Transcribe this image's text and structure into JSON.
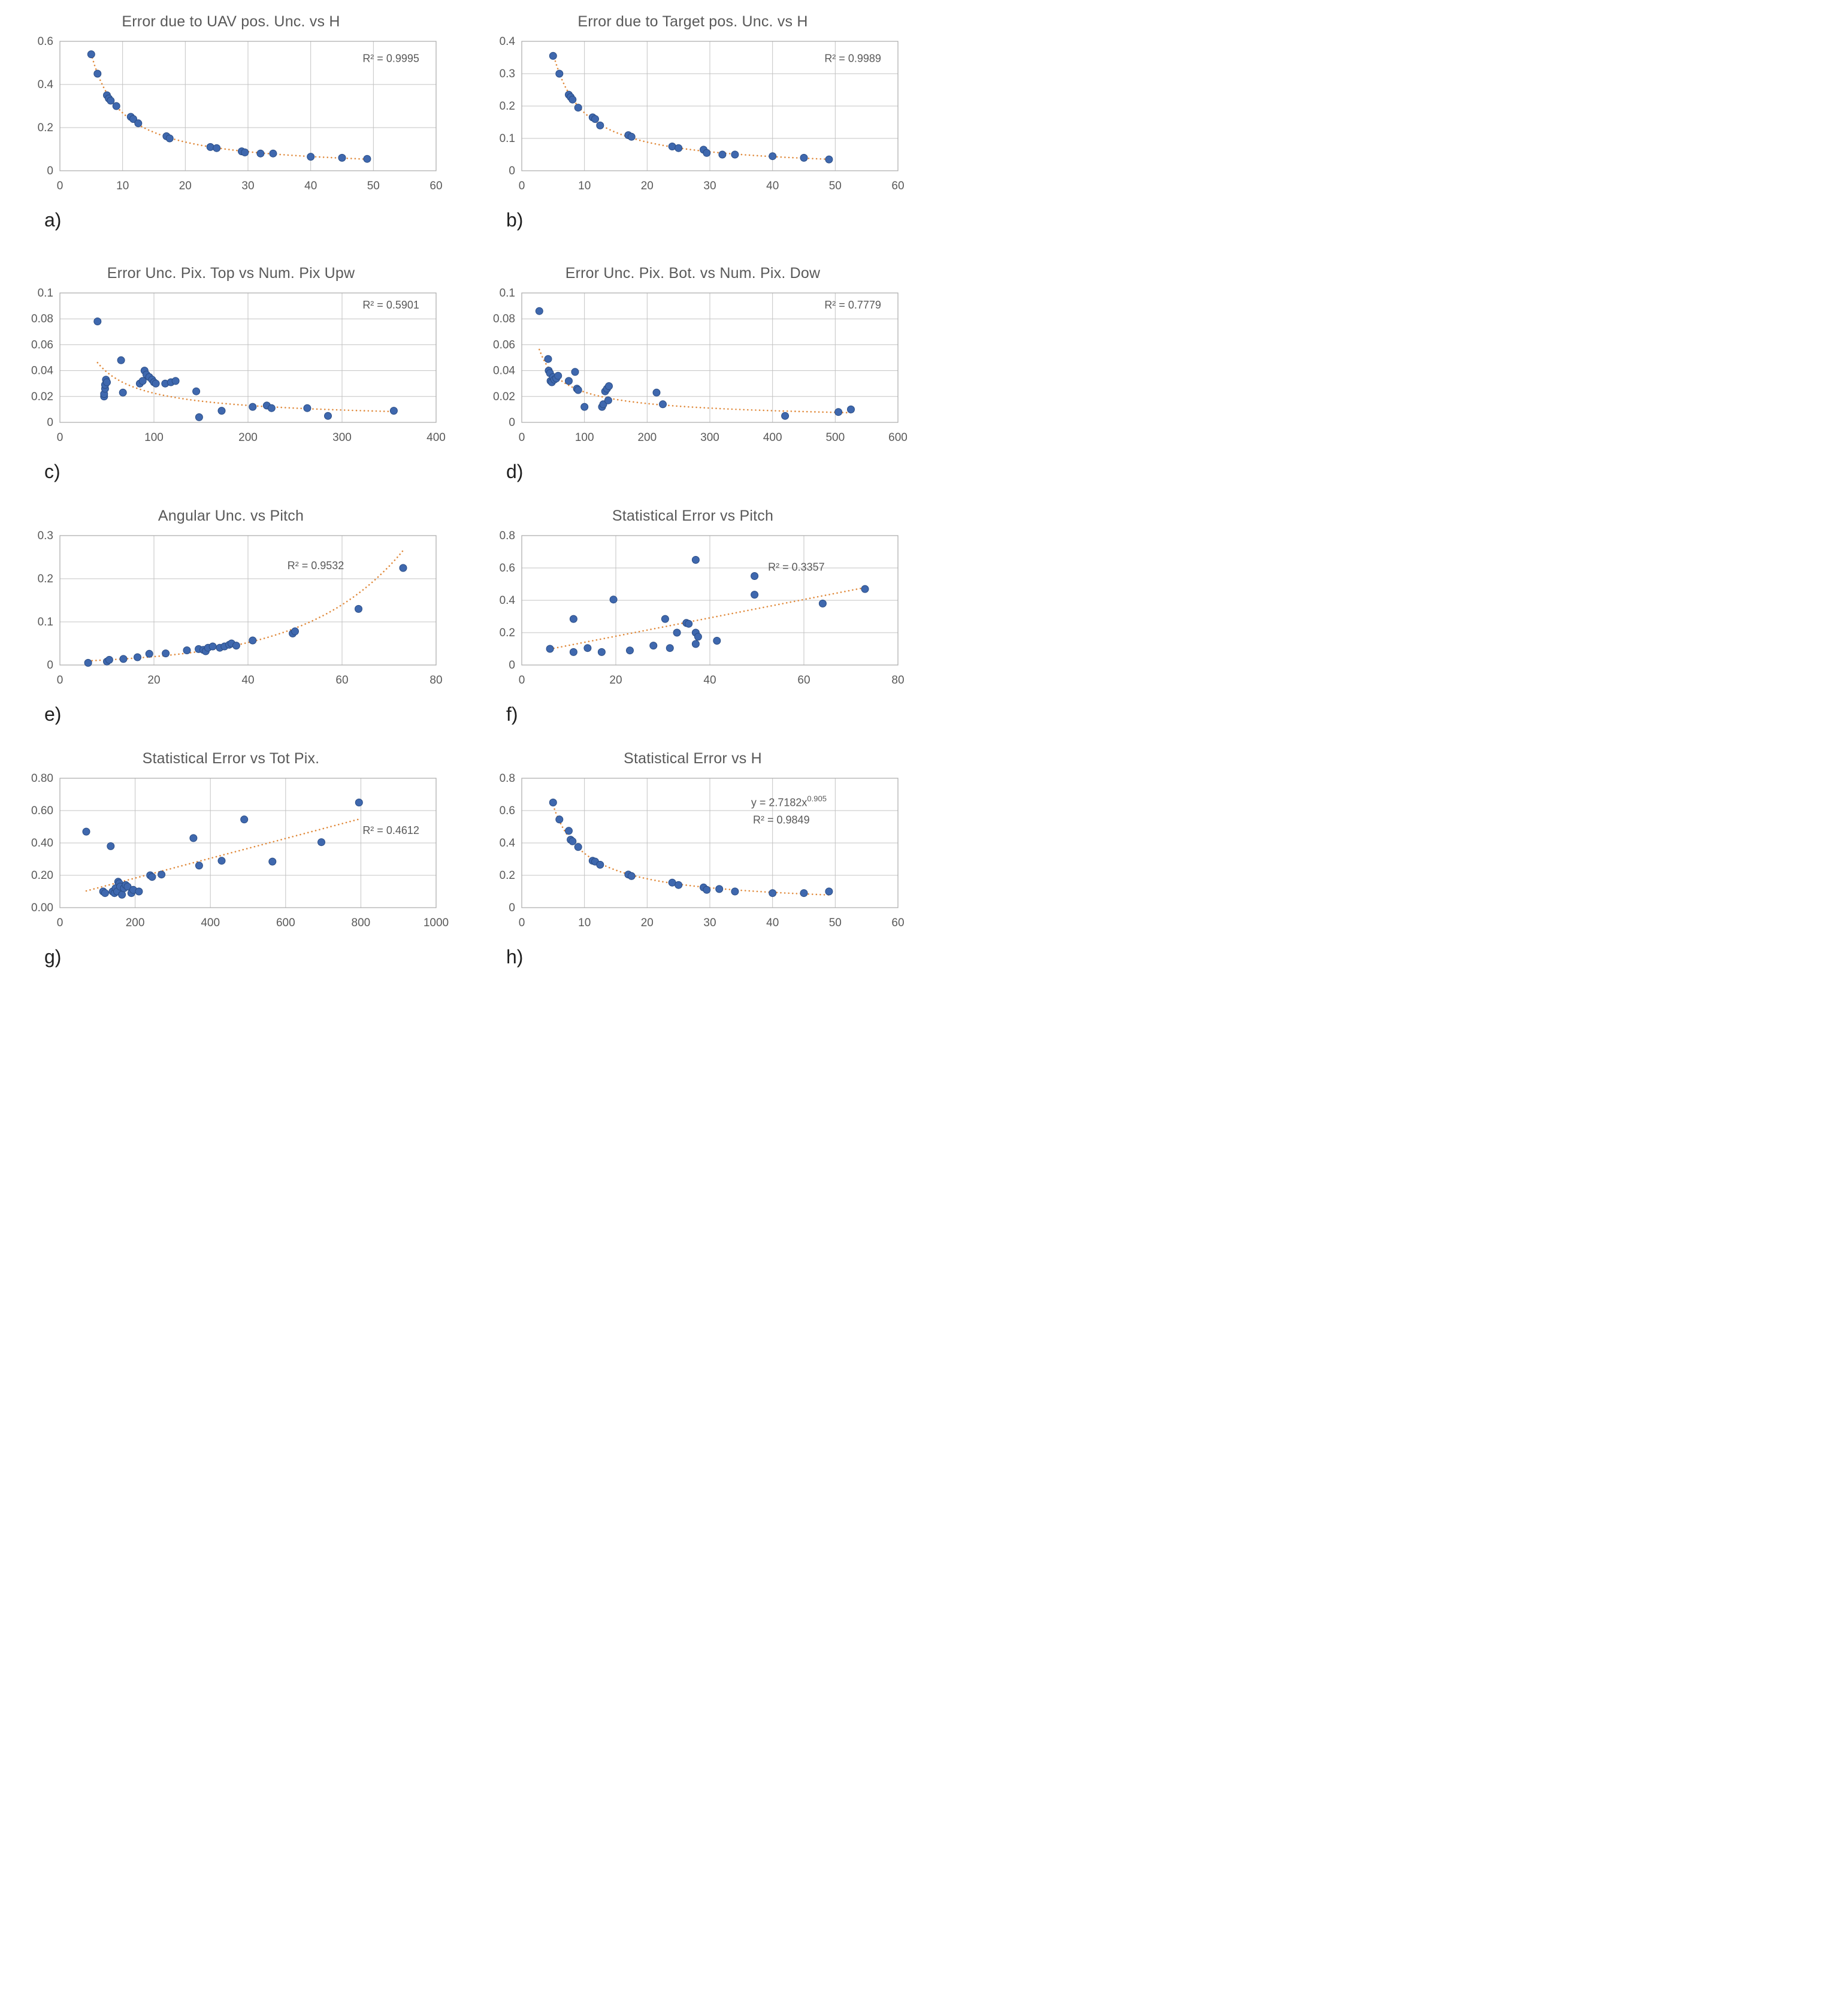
{
  "page": {
    "background": "#ffffff"
  },
  "colors": {
    "point": "#3f68ae",
    "point_edge": "#2a4d86",
    "trend": "#e08a3c",
    "title": "#595959",
    "tick": "#595959",
    "grid": "#c3c3c3",
    "border": "#a9a9a9",
    "annotation": "#595959",
    "caption": "#1f1f1f"
  },
  "chart_data": [
    {
      "type": "scatter",
      "panel_label": "a)",
      "title": "Error due to UAV pos. Unc. vs H",
      "xlabel": "",
      "ylabel": "",
      "xlim": [
        0,
        60
      ],
      "ylim": [
        0,
        0.6
      ],
      "xticks": [
        "0",
        "10",
        "20",
        "30",
        "40",
        "50",
        "60"
      ],
      "yticks": [
        "0",
        "0.2",
        "0.4",
        "0.6"
      ],
      "grid": true,
      "legend": false,
      "trend": {
        "kind": "power",
        "style": "dotted"
      },
      "annotations": [
        {
          "text": "R² = 0.9995",
          "fx": 0.88,
          "fy": 0.16
        }
      ],
      "points": [
        [
          5,
          0.54
        ],
        [
          6,
          0.45
        ],
        [
          7.5,
          0.35
        ],
        [
          7.8,
          0.335
        ],
        [
          8.1,
          0.325
        ],
        [
          9,
          0.3
        ],
        [
          11.3,
          0.25
        ],
        [
          11.7,
          0.24
        ],
        [
          12.5,
          0.22
        ],
        [
          17,
          0.16
        ],
        [
          17.5,
          0.15
        ],
        [
          24,
          0.11
        ],
        [
          25,
          0.105
        ],
        [
          29,
          0.09
        ],
        [
          29.5,
          0.085
        ],
        [
          32,
          0.08
        ],
        [
          34,
          0.08
        ],
        [
          40,
          0.065
        ],
        [
          45,
          0.06
        ],
        [
          49,
          0.055
        ]
      ]
    },
    {
      "type": "scatter",
      "panel_label": "b)",
      "title": "Error due to Target pos. Unc. vs H",
      "xlabel": "",
      "ylabel": "",
      "xlim": [
        0,
        60
      ],
      "ylim": [
        0,
        0.4
      ],
      "xticks": [
        "0",
        "10",
        "20",
        "30",
        "40",
        "50",
        "60"
      ],
      "yticks": [
        "0",
        "0.1",
        "0.2",
        "0.3",
        "0.4"
      ],
      "grid": true,
      "legend": false,
      "trend": {
        "kind": "power",
        "style": "dotted"
      },
      "annotations": [
        {
          "text": "R² = 0.9989",
          "fx": 0.88,
          "fy": 0.16
        }
      ],
      "points": [
        [
          5,
          0.355
        ],
        [
          6,
          0.3
        ],
        [
          7.5,
          0.235
        ],
        [
          7.8,
          0.228
        ],
        [
          8.1,
          0.22
        ],
        [
          9,
          0.195
        ],
        [
          11.3,
          0.165
        ],
        [
          11.7,
          0.16
        ],
        [
          12.5,
          0.14
        ],
        [
          17,
          0.11
        ],
        [
          17.5,
          0.105
        ],
        [
          24,
          0.075
        ],
        [
          25,
          0.07
        ],
        [
          29,
          0.065
        ],
        [
          29.5,
          0.055
        ],
        [
          32,
          0.05
        ],
        [
          34,
          0.05
        ],
        [
          40,
          0.045
        ],
        [
          45,
          0.04
        ],
        [
          49,
          0.035
        ]
      ]
    },
    {
      "type": "scatter",
      "panel_label": "c)",
      "title": "Error Unc. Pix. Top vs Num. Pix Upw",
      "xlabel": "",
      "ylabel": "",
      "xlim": [
        0,
        400
      ],
      "ylim": [
        0,
        0.1
      ],
      "xticks": [
        "0",
        "100",
        "200",
        "300",
        "400"
      ],
      "yticks": [
        "0",
        "0.02",
        "0.04",
        "0.06",
        "0.08",
        "0.1"
      ],
      "grid": true,
      "legend": false,
      "trend": {
        "kind": "power",
        "style": "dotted"
      },
      "annotations": [
        {
          "text": "R² = 0.5901",
          "fx": 0.88,
          "fy": 0.12
        }
      ],
      "points": [
        [
          40,
          0.078
        ],
        [
          47,
          0.02
        ],
        [
          47,
          0.022
        ],
        [
          48,
          0.026
        ],
        [
          48,
          0.029
        ],
        [
          49,
          0.033
        ],
        [
          50,
          0.031
        ],
        [
          65,
          0.048
        ],
        [
          67,
          0.023
        ],
        [
          85,
          0.03
        ],
        [
          88,
          0.032
        ],
        [
          90,
          0.04
        ],
        [
          92,
          0.037
        ],
        [
          95,
          0.035
        ],
        [
          98,
          0.033
        ],
        [
          100,
          0.031
        ],
        [
          102,
          0.03
        ],
        [
          112,
          0.03
        ],
        [
          118,
          0.031
        ],
        [
          123,
          0.032
        ],
        [
          145,
          0.024
        ],
        [
          148,
          0.004
        ],
        [
          172,
          0.009
        ],
        [
          205,
          0.012
        ],
        [
          220,
          0.013
        ],
        [
          225,
          0.011
        ],
        [
          263,
          0.011
        ],
        [
          285,
          0.005
        ],
        [
          355,
          0.009
        ]
      ]
    },
    {
      "type": "scatter",
      "panel_label": "d)",
      "title": "Error Unc. Pix. Bot. vs Num. Pix. Dow",
      "xlabel": "",
      "ylabel": "",
      "xlim": [
        0,
        600
      ],
      "ylim": [
        0,
        0.1
      ],
      "xticks": [
        "0",
        "100",
        "200",
        "300",
        "400",
        "500",
        "600"
      ],
      "yticks": [
        "0",
        "0.02",
        "0.04",
        "0.06",
        "0.08",
        "0.1"
      ],
      "grid": true,
      "legend": false,
      "trend": {
        "kind": "power",
        "style": "dotted"
      },
      "annotations": [
        {
          "text": "R² = 0.7779",
          "fx": 0.88,
          "fy": 0.12
        }
      ],
      "points": [
        [
          28,
          0.086
        ],
        [
          42,
          0.049
        ],
        [
          43,
          0.04
        ],
        [
          45,
          0.038
        ],
        [
          46,
          0.032
        ],
        [
          48,
          0.031
        ],
        [
          50,
          0.035
        ],
        [
          52,
          0.033
        ],
        [
          55,
          0.034
        ],
        [
          58,
          0.036
        ],
        [
          75,
          0.032
        ],
        [
          85,
          0.039
        ],
        [
          88,
          0.026
        ],
        [
          90,
          0.025
        ],
        [
          100,
          0.012
        ],
        [
          128,
          0.012
        ],
        [
          130,
          0.014
        ],
        [
          133,
          0.024
        ],
        [
          136,
          0.026
        ],
        [
          139,
          0.028
        ],
        [
          138,
          0.017
        ],
        [
          215,
          0.023
        ],
        [
          225,
          0.014
        ],
        [
          420,
          0.005
        ],
        [
          505,
          0.008
        ],
        [
          525,
          0.01
        ]
      ]
    },
    {
      "type": "scatter",
      "panel_label": "e)",
      "title": "Angular Unc. vs Pitch",
      "xlabel": "",
      "ylabel": "",
      "xlim": [
        0,
        80
      ],
      "ylim": [
        0,
        0.3
      ],
      "xticks": [
        "0",
        "20",
        "40",
        "60",
        "80"
      ],
      "yticks": [
        "0",
        "0.1",
        "0.2",
        "0.3"
      ],
      "grid": true,
      "legend": false,
      "trend": {
        "kind": "exponential",
        "style": "dotted"
      },
      "annotations": [
        {
          "text": "R² = 0.9532",
          "fx": 0.68,
          "fy": 0.26
        }
      ],
      "points": [
        [
          6,
          0.005
        ],
        [
          10,
          0.008
        ],
        [
          10.5,
          0.012
        ],
        [
          13.5,
          0.014
        ],
        [
          16.5,
          0.018
        ],
        [
          19,
          0.026
        ],
        [
          22.5,
          0.027
        ],
        [
          27,
          0.034
        ],
        [
          29.5,
          0.037
        ],
        [
          30.5,
          0.035
        ],
        [
          31,
          0.032
        ],
        [
          31.5,
          0.04
        ],
        [
          32.5,
          0.043
        ],
        [
          34,
          0.04
        ],
        [
          35,
          0.043
        ],
        [
          36,
          0.047
        ],
        [
          36.5,
          0.05
        ],
        [
          37.5,
          0.045
        ],
        [
          41,
          0.057
        ],
        [
          49.5,
          0.073
        ],
        [
          50,
          0.078
        ],
        [
          63.5,
          0.13
        ],
        [
          73,
          0.225
        ]
      ]
    },
    {
      "type": "scatter",
      "panel_label": "f)",
      "title": "Statistical Error vs Pitch",
      "xlabel": "",
      "ylabel": "",
      "xlim": [
        0,
        80
      ],
      "ylim": [
        0,
        0.8
      ],
      "xticks": [
        "0",
        "20",
        "40",
        "60",
        "80"
      ],
      "yticks": [
        "0",
        "0.2",
        "0.4",
        "0.6",
        "0.8"
      ],
      "grid": true,
      "legend": false,
      "trend": {
        "kind": "linear",
        "style": "dotted"
      },
      "annotations": [
        {
          "text": "R² = 0.3357",
          "fx": 0.73,
          "fy": 0.27
        }
      ],
      "points": [
        [
          6,
          0.1
        ],
        [
          11,
          0.285
        ],
        [
          11,
          0.08
        ],
        [
          14,
          0.105
        ],
        [
          17,
          0.08
        ],
        [
          19.5,
          0.405
        ],
        [
          23,
          0.09
        ],
        [
          28,
          0.12
        ],
        [
          30.5,
          0.285
        ],
        [
          31.5,
          0.105
        ],
        [
          33,
          0.2
        ],
        [
          35,
          0.26
        ],
        [
          35.5,
          0.255
        ],
        [
          37,
          0.65
        ],
        [
          37,
          0.2
        ],
        [
          37,
          0.13
        ],
        [
          37.5,
          0.175
        ],
        [
          41.5,
          0.15
        ],
        [
          49.5,
          0.55
        ],
        [
          49.5,
          0.435
        ],
        [
          64,
          0.38
        ],
        [
          73,
          0.47
        ]
      ]
    },
    {
      "type": "scatter",
      "panel_label": "g)",
      "title": "Statistical Error vs Tot Pix.",
      "xlabel": "",
      "ylabel": "",
      "xlim": [
        0,
        1000
      ],
      "ylim": [
        0,
        0.8
      ],
      "xticks": [
        "0",
        "200",
        "400",
        "600",
        "800",
        "1000"
      ],
      "yticks": [
        "0.00",
        "0.20",
        "0.40",
        "0.60",
        "0.80"
      ],
      "grid": true,
      "legend": false,
      "trend": {
        "kind": "linear",
        "style": "dotted"
      },
      "annotations": [
        {
          "text": "R² = 0.4612",
          "fx": 0.88,
          "fy": 0.43
        }
      ],
      "points": [
        [
          70,
          0.47
        ],
        [
          115,
          0.1
        ],
        [
          120,
          0.09
        ],
        [
          135,
          0.38
        ],
        [
          140,
          0.1
        ],
        [
          145,
          0.09
        ],
        [
          148,
          0.12
        ],
        [
          152,
          0.1
        ],
        [
          155,
          0.16
        ],
        [
          158,
          0.15
        ],
        [
          160,
          0.13
        ],
        [
          165,
          0.08
        ],
        [
          170,
          0.12
        ],
        [
          175,
          0.14
        ],
        [
          180,
          0.13
        ],
        [
          190,
          0.09
        ],
        [
          195,
          0.11
        ],
        [
          210,
          0.1
        ],
        [
          240,
          0.2
        ],
        [
          245,
          0.19
        ],
        [
          270,
          0.205
        ],
        [
          355,
          0.43
        ],
        [
          370,
          0.26
        ],
        [
          430,
          0.29
        ],
        [
          490,
          0.545
        ],
        [
          565,
          0.285
        ],
        [
          695,
          0.405
        ],
        [
          795,
          0.65
        ]
      ]
    },
    {
      "type": "scatter",
      "panel_label": "h)",
      "title": "Statistical Error vs H",
      "xlabel": "",
      "ylabel": "",
      "xlim": [
        0,
        60
      ],
      "ylim": [
        0,
        0.8
      ],
      "xticks": [
        "0",
        "10",
        "20",
        "30",
        "40",
        "50",
        "60"
      ],
      "yticks": [
        "0",
        "0.2",
        "0.4",
        "0.6",
        "0.8"
      ],
      "grid": true,
      "legend": false,
      "trend": {
        "kind": "power",
        "style": "dotted"
      },
      "annotations": [
        {
          "text": "y = 2.7182x",
          "sup": "0.905",
          "fx": 0.71,
          "fy": 0.215
        },
        {
          "text": "R² = 0.9849",
          "fx": 0.69,
          "fy": 0.35
        }
      ],
      "points": [
        [
          5,
          0.65
        ],
        [
          6,
          0.545
        ],
        [
          7.5,
          0.475
        ],
        [
          7.8,
          0.42
        ],
        [
          8.1,
          0.41
        ],
        [
          9,
          0.375
        ],
        [
          11.3,
          0.29
        ],
        [
          11.7,
          0.285
        ],
        [
          12.5,
          0.265
        ],
        [
          17,
          0.205
        ],
        [
          17.5,
          0.195
        ],
        [
          24,
          0.155
        ],
        [
          25,
          0.14
        ],
        [
          29,
          0.125
        ],
        [
          29.5,
          0.11
        ],
        [
          31.5,
          0.115
        ],
        [
          34,
          0.1
        ],
        [
          40,
          0.09
        ],
        [
          45,
          0.09
        ],
        [
          49,
          0.1
        ]
      ]
    }
  ]
}
